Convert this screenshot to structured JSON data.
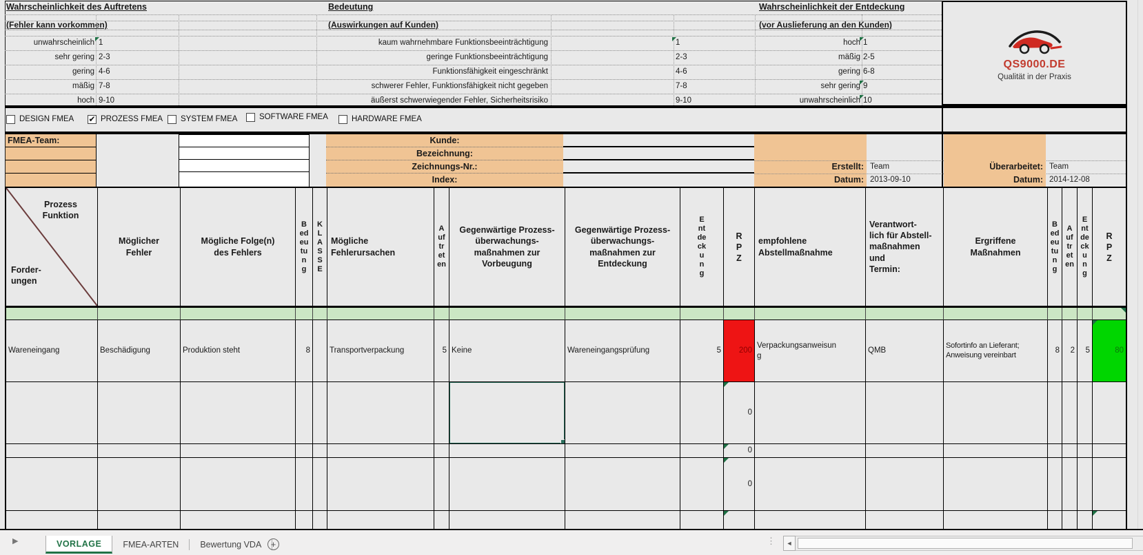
{
  "ratings": {
    "auftreten": {
      "title": "Wahrscheinlichkeit des Auftretens",
      "subtitle": "(Fehler kann vorkommen)",
      "rows": [
        [
          "unwahrscheinlich",
          "1"
        ],
        [
          "sehr gering",
          "2-3"
        ],
        [
          "gering",
          "4-6"
        ],
        [
          "mäßig",
          "7-8"
        ],
        [
          "hoch",
          "9-10"
        ]
      ]
    },
    "bedeutung": {
      "title": "Bedeutung",
      "subtitle": "(Auswirkungen auf Kunden)",
      "rows": [
        [
          "kaum wahrnehmbare Funktionsbeeinträchtigung",
          "1"
        ],
        [
          "geringe Funktionsbeeinträchtigung",
          "2-3"
        ],
        [
          "Funktionsfähigkeit eingeschränkt",
          "4-6"
        ],
        [
          "schwerer Fehler, Funktionsfähigkeit nicht gegeben",
          "7-8"
        ],
        [
          "äußerst schwerwiegender Fehler, Sicherheitsrisiko",
          "9-10"
        ]
      ]
    },
    "entdeckung": {
      "title": "Wahrscheinlichkeit der Entdeckung",
      "subtitle": "(vor Auslieferung an den Kunden)",
      "rows": [
        [
          "hoch",
          "1"
        ],
        [
          "mäßig",
          "2-5"
        ],
        [
          "gering",
          "6-8"
        ],
        [
          "sehr gering",
          "9"
        ],
        [
          "unwahrscheinlich",
          "10"
        ]
      ]
    }
  },
  "logo": {
    "brand": "QS9000.DE",
    "tagline": "Qualität in der Praxis"
  },
  "fmea_types": [
    {
      "label": "DESIGN FMEA",
      "checked": false
    },
    {
      "label": "PROZESS FMEA",
      "checked": true
    },
    {
      "label": "SYSTEM FMEA",
      "checked": false
    },
    {
      "label": "SOFTWARE FMEA",
      "checked": false
    },
    {
      "label": "HARDWARE FMEA",
      "checked": false
    }
  ],
  "team": {
    "fmea_team_label": "FMEA-Team:",
    "kunde": "Kunde:",
    "bezeichnung": "Bezeichnung:",
    "zeichnungs_nr": "Zeichnungs-Nr.:",
    "index": "Index:",
    "erstellt_label": "Erstellt:",
    "erstellt": "Team",
    "erstellt_datum_label": "Datum:",
    "erstellt_datum": "2013-09-10",
    "ueberarbeitet_label": "Überarbeitet:",
    "ueberarbeitet": "Team",
    "ueberarbeitet_datum_label": "Datum:",
    "ueberarbeitet_datum": "2014-12-08"
  },
  "table": {
    "headers": {
      "c1_top": "Prozess\nFunktion",
      "c1_bottom": "Forder-\nungen",
      "c2": "Möglicher\nFehler",
      "c3": "Mögliche Folge(n)\ndes Fehlers",
      "c4": "Bedeutung",
      "c5": "KLASSE",
      "c6": "Mögliche\nFehlerursachen",
      "c7": "Auftreten",
      "c8": "Gegenwärtige Prozess-\nüberwachungs-\nmaßnahmen zur\nVorbeugung",
      "c9": "Gegenwärtige Prozess-\nüberwachungs-\nmaßnahmen zur\nEntdeckung",
      "c10": "Entdeckung",
      "c11": "RPZ",
      "c12": "empfohlene\nAbstellmaßnahme",
      "c13": "Verantwort-\nlich für Abstell-\nmaßnahmen\nund\nTermin:",
      "c14": "Ergriffene\nMaßnahmen",
      "c15": "Bedeutung",
      "c16": "Auftreten",
      "c17": "Entdeckung",
      "c18": "RPZ"
    },
    "rows": [
      {
        "cells": [
          "Wareneingang",
          "Beschädigung",
          "Produktion steht",
          "8",
          "",
          "Transportverpackung",
          "5",
          "Keine",
          "Wareneingangsprüfung",
          "5",
          "200",
          "Verpackungsanweisung",
          "QMB",
          "Sofortinfo an Lieferant; Anweisung vereinbart",
          "8",
          "2",
          "5",
          "80"
        ]
      },
      {
        "cells": [
          "",
          "",
          "",
          "",
          "",
          "",
          "",
          "",
          "",
          "",
          "0",
          "",
          "",
          "",
          "",
          "",
          "",
          ""
        ]
      },
      {
        "cells": [
          "",
          "",
          "",
          "",
          "",
          "",
          "",
          "",
          "",
          "",
          "0",
          "",
          "",
          "",
          "",
          "",
          "",
          ""
        ]
      },
      {
        "cells": [
          "",
          "",
          "",
          "",
          "",
          "",
          "",
          "",
          "",
          "",
          "0",
          "",
          "",
          "",
          "",
          "",
          "",
          ""
        ]
      },
      {
        "cells": [
          "",
          "",
          "",
          "",
          "",
          "",
          "",
          "",
          "",
          "",
          "",
          "",
          "",
          "",
          "",
          "",
          "",
          ""
        ]
      }
    ]
  },
  "sheet_tabs": {
    "tabs": [
      {
        "label": "VORLAGE",
        "active": true
      },
      {
        "label": "FMEA-ARTEN",
        "active": false
      },
      {
        "label": "Bewertung VDA",
        "active": false
      }
    ]
  },
  "icons": {
    "nav_arrow": "▶",
    "scroll_left": "◄",
    "dots": "⋮",
    "add": "+",
    "check": "✔"
  },
  "colors": {
    "accent_orange": "#f0c494",
    "band_green": "#cbe7c4",
    "rpz_red_fill": "#ee1414",
    "rpz_red_text": "#8f0000",
    "rpz_green_fill": "#00d600",
    "rpz_green_text": "#0a7a0a",
    "active_tab_green": "#217346",
    "selection_border": "#2a6e5c"
  }
}
